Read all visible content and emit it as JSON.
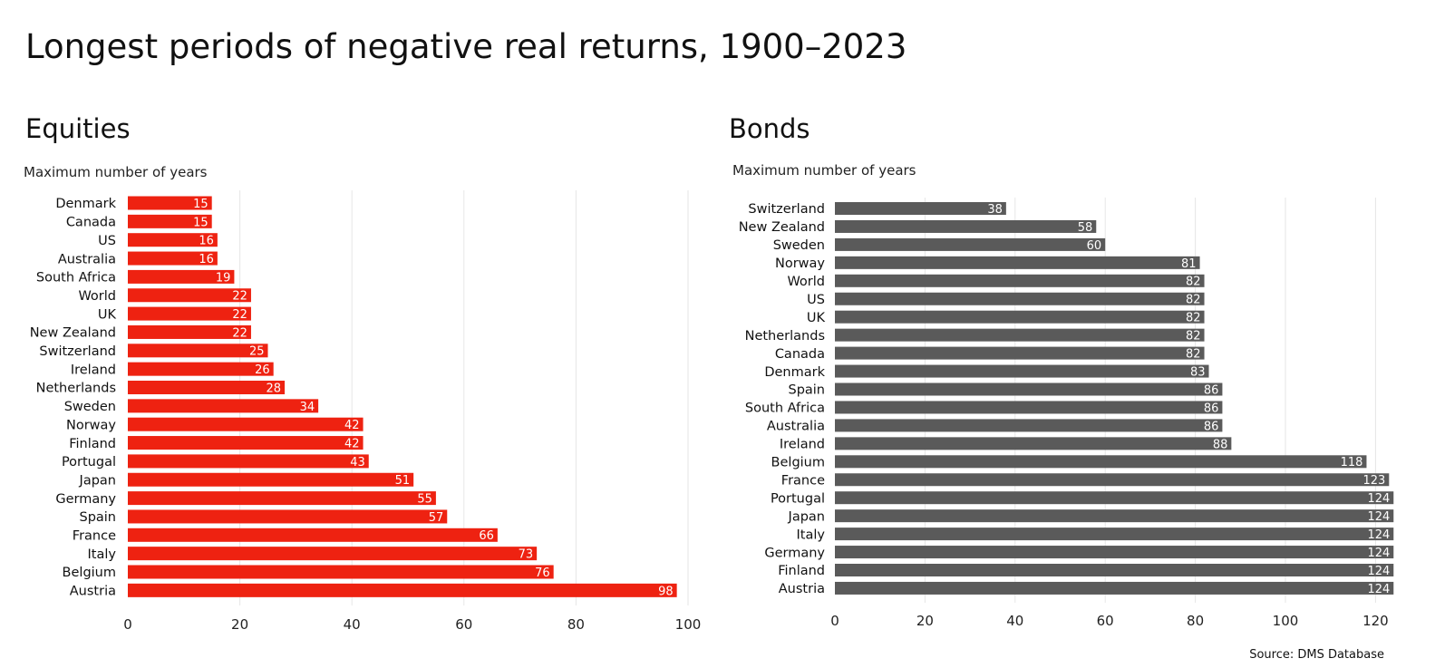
{
  "title": "Longest periods of negative real returns, 1900–2023",
  "source": "Source: DMS Database",
  "colors": {
    "equities": "#ee2211",
    "bonds": "#5a5a5a",
    "grid": "#e6e6e6"
  },
  "chart_data": [
    {
      "type": "bar",
      "orientation": "horizontal",
      "title": "Equities",
      "subtitle": "Maximum number of years",
      "xlim": [
        0,
        100
      ],
      "xticks": [
        0,
        20,
        40,
        60,
        80,
        100
      ],
      "grid": true,
      "categories": [
        "Denmark",
        "Canada",
        "US",
        "Australia",
        "South Africa",
        "World",
        "UK",
        "New Zealand",
        "Switzerland",
        "Ireland",
        "Netherlands",
        "Sweden",
        "Norway",
        "Finland",
        "Portugal",
        "Japan",
        "Germany",
        "Spain",
        "France",
        "Italy",
        "Belgium",
        "Austria"
      ],
      "values": [
        15,
        15,
        16,
        16,
        19,
        22,
        22,
        22,
        25,
        26,
        28,
        34,
        42,
        42,
        43,
        51,
        55,
        57,
        66,
        73,
        76,
        98
      ]
    },
    {
      "type": "bar",
      "orientation": "horizontal",
      "title": "Bonds",
      "subtitle": "Maximum number of years",
      "xlim": [
        0,
        124
      ],
      "xticks": [
        0,
        20,
        40,
        60,
        80,
        100,
        120
      ],
      "grid": true,
      "categories": [
        "Switzerland",
        "New Zealand",
        "Sweden",
        "Norway",
        "World",
        "US",
        "UK",
        "Netherlands",
        "Canada",
        "Denmark",
        "Spain",
        "South Africa",
        "Australia",
        "Ireland",
        "Belgium",
        "France",
        "Portugal",
        "Japan",
        "Italy",
        "Germany",
        "Finland",
        "Austria"
      ],
      "values": [
        38,
        58,
        60,
        81,
        82,
        82,
        82,
        82,
        82,
        83,
        86,
        86,
        86,
        88,
        118,
        123,
        124,
        124,
        124,
        124,
        124,
        124
      ]
    }
  ]
}
